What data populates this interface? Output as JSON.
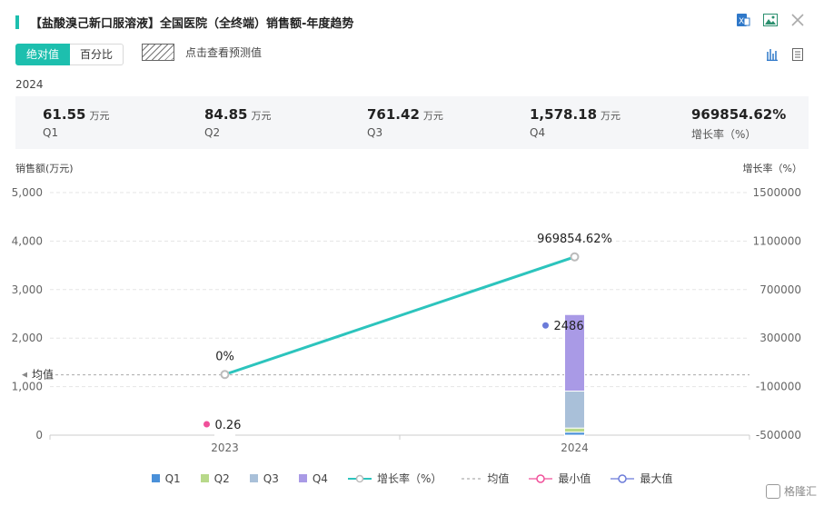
{
  "header": {
    "title": "【盐酸溴己新口服溶液】全国医院（全终端）销售额-年度趋势"
  },
  "toggle": {
    "absolute": "绝对值",
    "percent": "百分比"
  },
  "forecast_label": "点击查看预测值",
  "year": "2024",
  "summary": [
    {
      "value": "61.55",
      "unit": "万元",
      "label": "Q1"
    },
    {
      "value": "84.85",
      "unit": "万元",
      "label": "Q2"
    },
    {
      "value": "761.42",
      "unit": "万元",
      "label": "Q3"
    },
    {
      "value": "1,578.18",
      "unit": "万元",
      "label": "Q4"
    },
    {
      "value": "969854.62%",
      "unit": "",
      "label": "增长率（%）"
    }
  ],
  "watermark": "格隆汇",
  "chart_data": {
    "type": "bar",
    "stacked": true,
    "categories": [
      "2023",
      "2024"
    ],
    "series": [
      {
        "name": "Q1",
        "color": "#4a90d9",
        "values": [
          0.26,
          61.55
        ]
      },
      {
        "name": "Q2",
        "color": "#b8d98a",
        "values": [
          0,
          84.85
        ]
      },
      {
        "name": "Q3",
        "color": "#a9c0d9",
        "values": [
          0,
          761.42
        ]
      },
      {
        "name": "Q4",
        "color": "#a99ae6",
        "values": [
          0,
          1578.18
        ]
      }
    ],
    "line_series": {
      "name": "增长率（%）",
      "color": "#2cc4bd",
      "values": [
        0,
        969854.62
      ],
      "labels": [
        "0%",
        "969854.62%"
      ]
    },
    "mean": {
      "name": "均值",
      "label": "均值",
      "value": 1243.13
    },
    "min": {
      "name": "最小值",
      "value": 0.26,
      "label": "0.26",
      "category": "2023",
      "color": "#f0509a"
    },
    "max": {
      "name": "最大值",
      "value": 2486,
      "label": "2486",
      "category": "2024",
      "color": "#6b7bd9"
    },
    "ylabel": "销售额(万元)",
    "y2label": "增长率（%）",
    "ylim": [
      0,
      5000
    ],
    "y2lim": [
      -500000,
      1500000
    ],
    "yticks": [
      "0",
      "1,000",
      "2,000",
      "3,000",
      "4,000",
      "5,000"
    ],
    "y2ticks": [
      "-500000",
      "-100000",
      "300000",
      "700000",
      "1100000",
      "1500000"
    ],
    "legend": [
      "Q1",
      "Q2",
      "Q3",
      "Q4",
      "增长率（%）",
      "均值",
      "最小值",
      "最大值"
    ]
  }
}
